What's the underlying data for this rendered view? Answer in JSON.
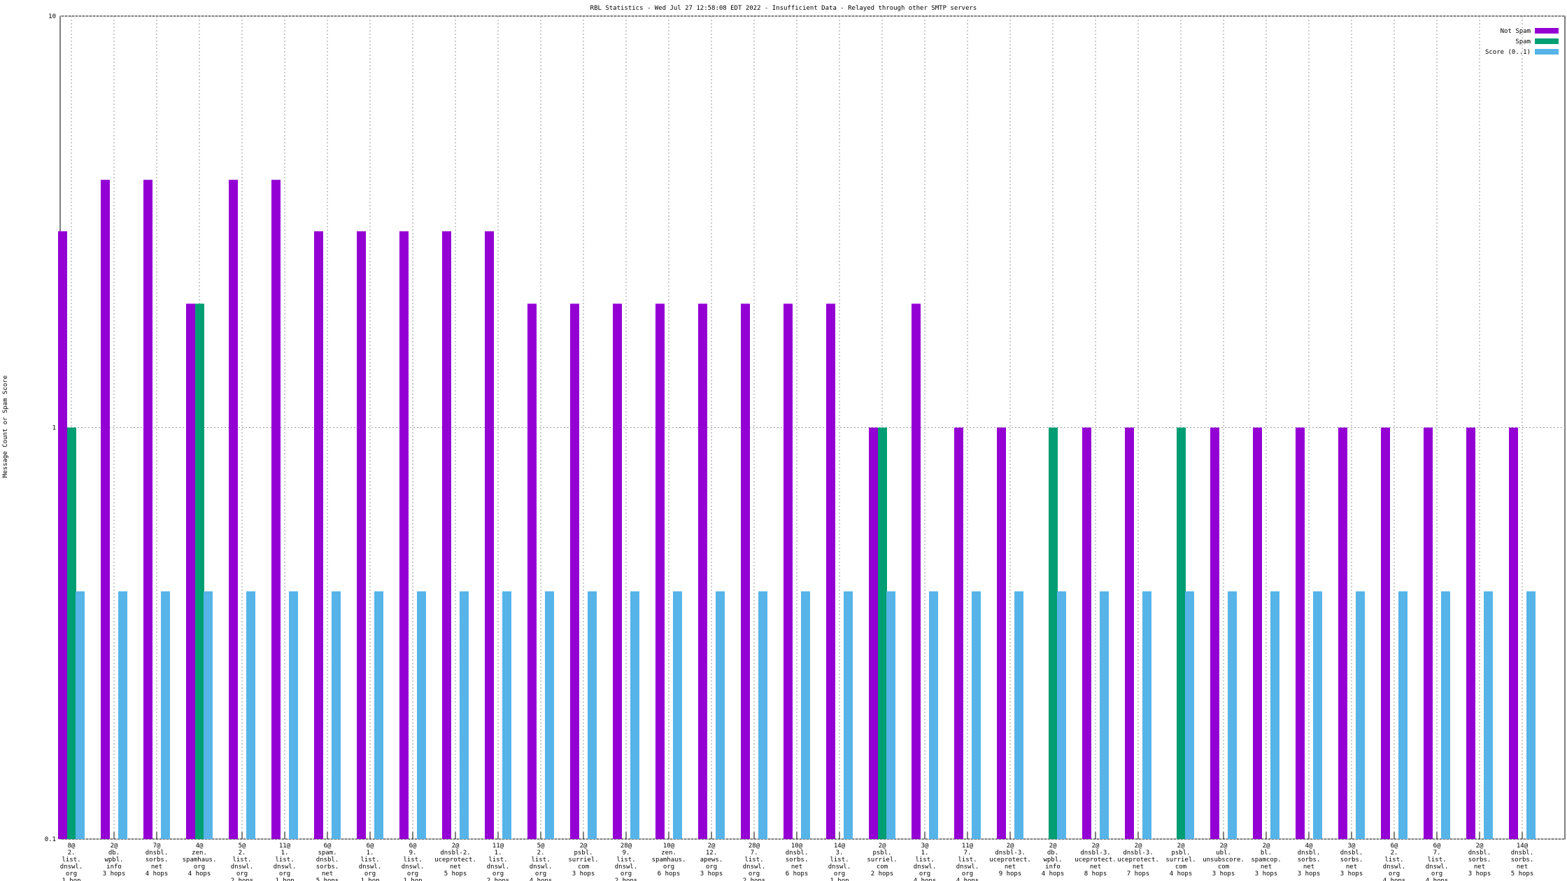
{
  "chart_data": {
    "type": "bar",
    "title": "RBL Statistics - Wed Jul 27 12:58:08 EDT 2022 - Insufficient Data - Relayed through other SMTP servers",
    "y_label": "Message Count or Spam Score",
    "log_scale": true,
    "grid": true,
    "legend": "top-right",
    "ylim": [
      0.1,
      10
    ],
    "yticks": [
      0.1,
      1,
      10
    ],
    "categories": [
      [
        "8@",
        "2.",
        "list.",
        "dnswl.",
        "org",
        "1 hop"
      ],
      [
        "2@",
        "db.",
        "wpbl.",
        "info",
        "3 hops"
      ],
      [
        "7@",
        "dnsbl.",
        "sorbs.",
        "net",
        "4 hops"
      ],
      [
        "4@",
        "zen.",
        "spamhaus.",
        "org",
        "4 hops"
      ],
      [
        "5@",
        "2.",
        "list.",
        "dnswl.",
        "org",
        "2 hops"
      ],
      [
        "11@",
        "1.",
        "list.",
        "dnswl.",
        "org",
        "1 hop"
      ],
      [
        "6@",
        "spam.",
        "dnsbl.",
        "sorbs.",
        "net",
        "5 hops"
      ],
      [
        "6@",
        "1.",
        "list.",
        "dnswl.",
        "org",
        "1 hop"
      ],
      [
        "6@",
        "9.",
        "list.",
        "dnswl.",
        "org",
        "1 hop"
      ],
      [
        "2@",
        "dnsbl-2.",
        "uceprotect.",
        "net",
        "5 hops"
      ],
      [
        "11@",
        "1.",
        "list.",
        "dnswl.",
        "org",
        "2 hops"
      ],
      [
        "5@",
        "2.",
        "list.",
        "dnswl.",
        "org",
        "4 hops"
      ],
      [
        "2@",
        "psbl.",
        "surriel.",
        "com",
        "3 hops"
      ],
      [
        "28@",
        "9.",
        "list.",
        "dnswl.",
        "org",
        "2 hops"
      ],
      [
        "10@",
        "zen.",
        "spamhaus.",
        "org",
        "6 hops"
      ],
      [
        "2@",
        "12.",
        "apews.",
        "org",
        "3 hops"
      ],
      [
        "28@",
        "7.",
        "list.",
        "dnswl.",
        "org",
        "2 hops"
      ],
      [
        "10@",
        "dnsbl.",
        "sorbs.",
        "net",
        "6 hops"
      ],
      [
        "14@",
        "3.",
        "list.",
        "dnswl.",
        "org",
        "1 hop"
      ],
      [
        "2@",
        "psbl.",
        "surriel.",
        "com",
        "2 hops"
      ],
      [
        "3@",
        "1.",
        "list.",
        "dnswl.",
        "org",
        "4 hops"
      ],
      [
        "11@",
        "7.",
        "list.",
        "dnswl.",
        "org",
        "4 hops"
      ],
      [
        "2@",
        "dnsbl-3.",
        "uceprotect.",
        "net",
        "9 hops"
      ],
      [
        "2@",
        "db.",
        "wpbl.",
        "info",
        "4 hops"
      ],
      [
        "2@",
        "dnsbl-3.",
        "uceprotect.",
        "net",
        "8 hops"
      ],
      [
        "2@",
        "dnsbl-3.",
        "uceprotect.",
        "net",
        "7 hops"
      ],
      [
        "2@",
        "psbl.",
        "surriel.",
        "com",
        "4 hops"
      ],
      [
        "2@",
        "ubl.",
        "unsubscore.",
        "com",
        "3 hops"
      ],
      [
        "2@",
        "bl.",
        "spamcop.",
        "net",
        "3 hops"
      ],
      [
        "4@",
        "dnsbl.",
        "sorbs.",
        "net",
        "3 hops"
      ],
      [
        "3@",
        "dnsbl.",
        "sorbs.",
        "net",
        "3 hops"
      ],
      [
        "6@",
        "2.",
        "list.",
        "dnswl.",
        "org",
        "4 hops"
      ],
      [
        "6@",
        "7.",
        "list.",
        "dnswl.",
        "org",
        "4 hops"
      ],
      [
        "2@",
        "dnsbl.",
        "sorbs.",
        "net",
        "3 hops"
      ],
      [
        "14@",
        "dnsbl.",
        "sorbs.",
        "net",
        "5 hops"
      ]
    ],
    "series": [
      {
        "name": "Not Spam",
        "color": "#9400d3",
        "values": [
          3,
          4,
          4,
          2,
          4,
          4,
          3,
          3,
          3,
          3,
          3,
          2,
          2,
          2,
          2,
          2,
          2,
          2,
          2,
          1,
          2,
          1,
          1,
          null,
          1,
          1,
          null,
          1,
          1,
          1,
          1,
          1,
          1,
          1,
          1
        ]
      },
      {
        "name": "Spam",
        "color": "#009e73",
        "values": [
          1,
          null,
          null,
          2,
          null,
          null,
          null,
          null,
          null,
          null,
          null,
          null,
          null,
          null,
          null,
          null,
          null,
          null,
          null,
          1,
          null,
          null,
          null,
          1,
          null,
          null,
          1,
          null,
          null,
          null,
          null,
          null,
          null,
          null,
          null
        ]
      },
      {
        "name": "Score (0..1)",
        "color": "#56b4e9",
        "values": [
          0.4,
          0.4,
          0.4,
          0.4,
          0.4,
          0.4,
          0.4,
          0.4,
          0.4,
          0.4,
          0.4,
          0.4,
          0.4,
          0.4,
          0.4,
          0.4,
          0.4,
          0.4,
          0.4,
          0.4,
          0.4,
          0.4,
          0.4,
          0.4,
          0.4,
          0.4,
          0.4,
          0.4,
          0.4,
          0.4,
          0.4,
          0.4,
          0.4,
          0.4,
          0.4
        ]
      }
    ]
  }
}
